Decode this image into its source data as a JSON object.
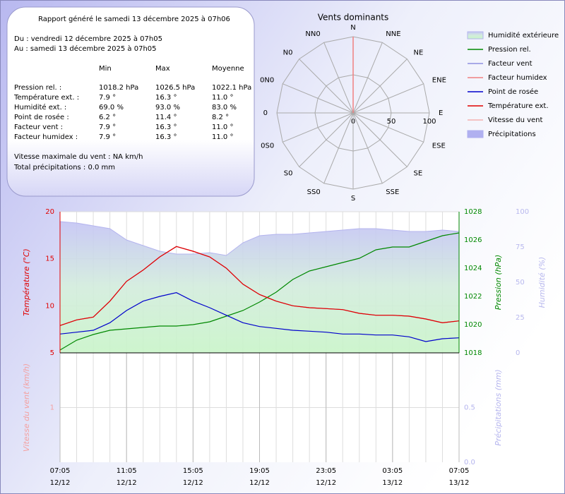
{
  "report": {
    "title": "Rapport généré le samedi 13 décembre 2025 à 07h06",
    "period": [
      "Du : vendredi 12 décembre 2025 à 07h05",
      "Au : samedi 13 décembre 2025 à 07h05"
    ],
    "table": {
      "header": [
        "Min",
        "Max",
        "Moyenne"
      ],
      "rows": [
        [
          "Pression rel. :",
          "1018.2 hPa",
          "1026.5 hPa",
          "1022.1 hPa"
        ],
        [
          "Température ext. :",
          "7.9 °",
          "16.3 °",
          "11.0 °"
        ],
        [
          "Humidité ext. :",
          "69.0 %",
          "93.0 %",
          "83.0 %"
        ],
        [
          "Point de rosée :",
          "6.2 °",
          "11.4 °",
          "8.2 °"
        ],
        [
          "Facteur vent :",
          "7.9 °",
          "16.3 °",
          "11.0 °"
        ],
        [
          "Facteur humidex :",
          "7.9 °",
          "16.3 °",
          "11.0 °"
        ]
      ]
    },
    "notes": [
      "Vitesse maximale du vent : NA km/h",
      "Total précipitations : 0.0 mm"
    ]
  },
  "chart_data": [
    {
      "type": "radar",
      "title": "Vents dominants",
      "categories": [
        "N",
        "NNE",
        "NE",
        "ENE",
        "E",
        "ESE",
        "SE",
        "SSE",
        "S",
        "SS0",
        "S0",
        "0S0",
        "0",
        "0N0",
        "N0",
        "NN0"
      ],
      "values": [
        100,
        0,
        0,
        0,
        0,
        0,
        0,
        0,
        0,
        0,
        0,
        0,
        0,
        0,
        0,
        0
      ],
      "color": "#f08080",
      "rlim": [
        0,
        100
      ],
      "rticks": [
        0,
        50,
        100
      ]
    },
    {
      "type": "line",
      "x": [
        0,
        1,
        2,
        3,
        4,
        5,
        6,
        7,
        8,
        9,
        10,
        11,
        12,
        13,
        14,
        15,
        16,
        17,
        18,
        19,
        20,
        21,
        22,
        23,
        24
      ],
      "xlim": [
        0,
        24
      ],
      "ylim": [
        5,
        20
      ],
      "yticks": [
        5,
        10,
        15,
        20
      ],
      "ylabel": "Température (°C)",
      "ycolor": "#e00000",
      "y2lim": [
        1018,
        1028
      ],
      "y2ticks": [
        1018,
        1020,
        1022,
        1024,
        1026,
        1028
      ],
      "y2label": "Pression (hPa)",
      "y2color": "#008800",
      "y3lim": [
        0,
        100
      ],
      "y3ticks": [
        0,
        25,
        50,
        75,
        100
      ],
      "y3label": "Humidité (%)",
      "y3color": "#b8b8ee",
      "series": [
        {
          "name": "Humidité extérieure",
          "color": "#b4b4ee",
          "axis": "y3",
          "style": "area",
          "values": [
            93,
            92,
            90,
            88,
            80,
            76,
            72,
            70,
            70,
            71,
            69,
            78,
            83,
            84,
            84,
            85,
            86,
            87,
            88,
            88,
            87,
            86,
            86,
            87,
            86
          ]
        },
        {
          "name": "Pression rel.",
          "color": "#008800",
          "axis": "y2",
          "style": "line",
          "values": [
            1018.2,
            1018.9,
            1019.3,
            1019.6,
            1019.7,
            1019.8,
            1019.9,
            1019.9,
            1020.0,
            1020.2,
            1020.6,
            1021.0,
            1021.6,
            1022.3,
            1023.2,
            1023.8,
            1024.1,
            1024.4,
            1024.7,
            1025.3,
            1025.5,
            1025.5,
            1025.9,
            1026.3,
            1026.5
          ]
        },
        {
          "name": "Facteur vent",
          "color": "#9090e0",
          "axis": "y",
          "style": "line",
          "values": [
            7.9,
            8.5,
            8.8,
            10.5,
            12.6,
            13.8,
            15.2,
            16.3,
            15.8,
            15.2,
            14.0,
            12.3,
            11.2,
            10.5,
            10.0,
            9.8,
            9.7,
            9.6,
            9.2,
            9.0,
            9.0,
            8.9,
            8.6,
            8.2,
            8.4
          ]
        },
        {
          "name": "Facteur humidex",
          "color": "#f08080",
          "axis": "y",
          "style": "line",
          "values": [
            7.9,
            8.5,
            8.8,
            10.5,
            12.6,
            13.8,
            15.2,
            16.3,
            15.8,
            15.2,
            14.0,
            12.3,
            11.2,
            10.5,
            10.0,
            9.8,
            9.7,
            9.6,
            9.2,
            9.0,
            9.0,
            8.9,
            8.6,
            8.2,
            8.4
          ]
        },
        {
          "name": "Point de rosée",
          "color": "#0000cc",
          "axis": "y",
          "style": "line",
          "values": [
            7.0,
            7.2,
            7.4,
            8.2,
            9.5,
            10.5,
            11.0,
            11.4,
            10.5,
            9.8,
            9.0,
            8.2,
            7.8,
            7.6,
            7.4,
            7.3,
            7.2,
            7.0,
            7.0,
            6.9,
            6.9,
            6.7,
            6.2,
            6.5,
            6.6
          ]
        },
        {
          "name": "Température ext.",
          "color": "#e00000",
          "axis": "y",
          "style": "line",
          "values": [
            7.9,
            8.5,
            8.8,
            10.5,
            12.6,
            13.8,
            15.2,
            16.3,
            15.8,
            15.2,
            14.0,
            12.3,
            11.2,
            10.5,
            10.0,
            9.8,
            9.7,
            9.6,
            9.2,
            9.0,
            9.0,
            8.9,
            8.6,
            8.2,
            8.4
          ]
        }
      ]
    },
    {
      "type": "bar",
      "x": [
        0,
        1,
        2,
        3,
        4,
        5,
        6,
        7,
        8,
        9,
        10,
        11,
        12,
        13,
        14,
        15,
        16,
        17,
        18,
        19,
        20,
        21,
        22,
        23,
        24
      ],
      "xlim": [
        0,
        24
      ],
      "xticks": [
        {
          "value": 0,
          "label": [
            "07:05",
            "12/12"
          ]
        },
        {
          "value": 4,
          "label": [
            "11:05",
            "12/12"
          ]
        },
        {
          "value": 8,
          "label": [
            "15:05",
            "12/12"
          ]
        },
        {
          "value": 12,
          "label": [
            "19:05",
            "12/12"
          ]
        },
        {
          "value": 16,
          "label": [
            "23:05",
            "12/12"
          ]
        },
        {
          "value": 20,
          "label": [
            "03:05",
            "13/12"
          ]
        },
        {
          "value": 24,
          "label": [
            "07:05",
            "13/12"
          ]
        }
      ],
      "ylim": [
        0,
        2
      ],
      "yticks": [
        1
      ],
      "ylabel": "Vitesse du vent (km/h)",
      "ycolor": "#f4a0a0",
      "y2lim": [
        0,
        1
      ],
      "y2ticks": [
        {
          "value": 0,
          "label": "0.0"
        },
        0.5
      ],
      "y2label": "Précipitations (mm)",
      "y2color": "#b4b4ee",
      "series": [
        {
          "name": "Vitesse du vent",
          "color": "#f4b0b0",
          "axis": "y",
          "style": "line",
          "values": [
            null,
            null,
            null,
            null,
            null,
            null,
            null,
            null,
            null,
            null,
            null,
            null,
            null,
            null,
            null,
            null,
            null,
            null,
            null,
            null,
            null,
            null,
            null,
            null,
            null
          ]
        },
        {
          "name": "Précipitations",
          "color": "#b0b0f0",
          "axis": "y2",
          "style": "bar",
          "values": [
            0,
            0,
            0,
            0,
            0,
            0,
            0,
            0,
            0,
            0,
            0,
            0,
            0,
            0,
            0,
            0,
            0,
            0,
            0,
            0,
            0,
            0,
            0,
            0,
            0
          ]
        }
      ]
    }
  ]
}
